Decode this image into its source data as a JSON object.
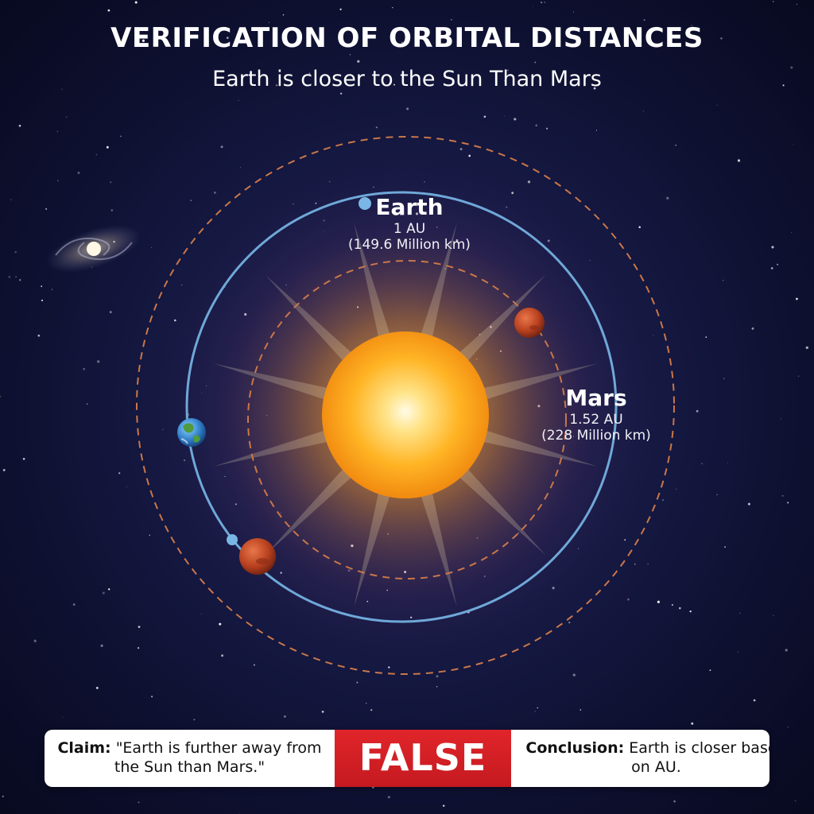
{
  "title": "VERIFICATION OF ORBITAL DISTANCES",
  "subtitle": "Earth is closer to the Sun Than Mars",
  "earth": {
    "name": "Earth",
    "au": "1 AU",
    "km": "(149.6 Million km)"
  },
  "mars": {
    "name": "Mars",
    "au": "1.52 AU",
    "km": "(228 Million km)"
  },
  "panel": {
    "claim_label": "Claim:",
    "claim_text": "\"Earth is further away from the Sun than Mars.\"",
    "verdict": "FALSE",
    "conclusion_label": "Conclusion:",
    "conclusion_text": "Earth is closer based on AU."
  },
  "colors": {
    "background": "#151840",
    "earth_orbit": "#6fa8d8",
    "mars_orbit": "#c9774a",
    "sun": "#ffb52a",
    "verdict": "#d32027"
  },
  "icons": [
    "sun-icon",
    "earth-planet-icon",
    "mars-planet-icon",
    "spiral-galaxy-icon"
  ]
}
